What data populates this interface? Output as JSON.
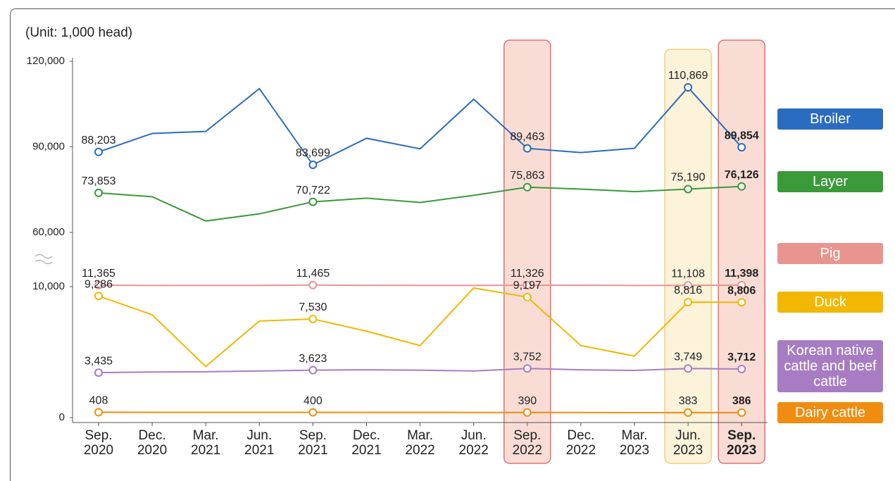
{
  "chart_data": {
    "type": "line",
    "unit_label": "(Unit: 1,000 head)",
    "categories": [
      "Sep. 2020",
      "Dec. 2020",
      "Mar. 2021",
      "Jun. 2021",
      "Sep. 2021",
      "Dec. 2021",
      "Mar. 2022",
      "Jun. 2022",
      "Sep. 2022",
      "Dec. 2022",
      "Mar. 2023",
      "Jun. 2023",
      "Sep. 2023"
    ],
    "ylim": [
      0,
      120000
    ],
    "yticks": [
      0,
      {
        "value": 10000,
        "label": "10,000"
      },
      {
        "value": 60000,
        "label": "60,000"
      },
      {
        "value": 90000,
        "label": "90,000"
      },
      {
        "value": 120000,
        "label": "120,000"
      }
    ],
    "axis_break": [
      10000,
      60000
    ],
    "legend_position": "right",
    "series": [
      {
        "name": "Broiler",
        "color": "#2a6cbf",
        "values": [
          88203,
          94700,
          95400,
          110400,
          83699,
          93000,
          89300,
          106700,
          89463,
          88000,
          89500,
          110869,
          89854
        ],
        "value_labels": [
          "88,203",
          null,
          null,
          null,
          "83,699",
          null,
          null,
          null,
          "89,463",
          null,
          null,
          "110,869",
          "89,854"
        ]
      },
      {
        "name": "Layer",
        "color": "#3a9a3a",
        "values": [
          73853,
          72500,
          64000,
          66500,
          70722,
          72000,
          70500,
          73000,
          75863,
          75200,
          74300,
          75190,
          76126
        ],
        "value_labels": [
          "73,853",
          null,
          null,
          null,
          "70,722",
          null,
          null,
          null,
          "75,863",
          null,
          null,
          "75,190",
          "76,126"
        ]
      },
      {
        "name": "Pig",
        "color": "#e8958f",
        "values": [
          11365,
          11050,
          11150,
          11150,
          11465,
          11200,
          11150,
          11150,
          11326,
          11300,
          11080,
          11108,
          11398
        ],
        "value_labels": [
          "11,365",
          null,
          null,
          null,
          "11,465",
          null,
          null,
          null,
          "11,326",
          null,
          null,
          "11,108",
          "11,398"
        ]
      },
      {
        "name": "Duck",
        "color": "#f2b700",
        "values": [
          9286,
          7850,
          3900,
          7370,
          7530,
          6600,
          5500,
          9900,
          9197,
          5500,
          4700,
          8816,
          8806
        ],
        "value_labels": [
          "9,286",
          null,
          null,
          null,
          "7,530",
          null,
          null,
          null,
          "9,197",
          null,
          null,
          "8,816",
          "8,806"
        ]
      },
      {
        "name": "Korean native cattle and beef cattle",
        "color": "#a87cc2",
        "values": [
          3435,
          3480,
          3500,
          3560,
          3623,
          3650,
          3620,
          3560,
          3752,
          3650,
          3600,
          3749,
          3712
        ],
        "value_labels": [
          "3,435",
          null,
          null,
          null,
          "3,623",
          null,
          null,
          null,
          "3,752",
          null,
          null,
          "3,749",
          "3,712"
        ]
      },
      {
        "name": "Dairy cattle",
        "color": "#f08c10",
        "values": [
          408,
          405,
          403,
          401,
          400,
          398,
          395,
          392,
          390,
          388,
          385,
          383,
          386
        ],
        "value_labels": [
          "408",
          null,
          null,
          null,
          "400",
          null,
          null,
          null,
          "390",
          null,
          null,
          "383",
          "386"
        ]
      }
    ]
  }
}
